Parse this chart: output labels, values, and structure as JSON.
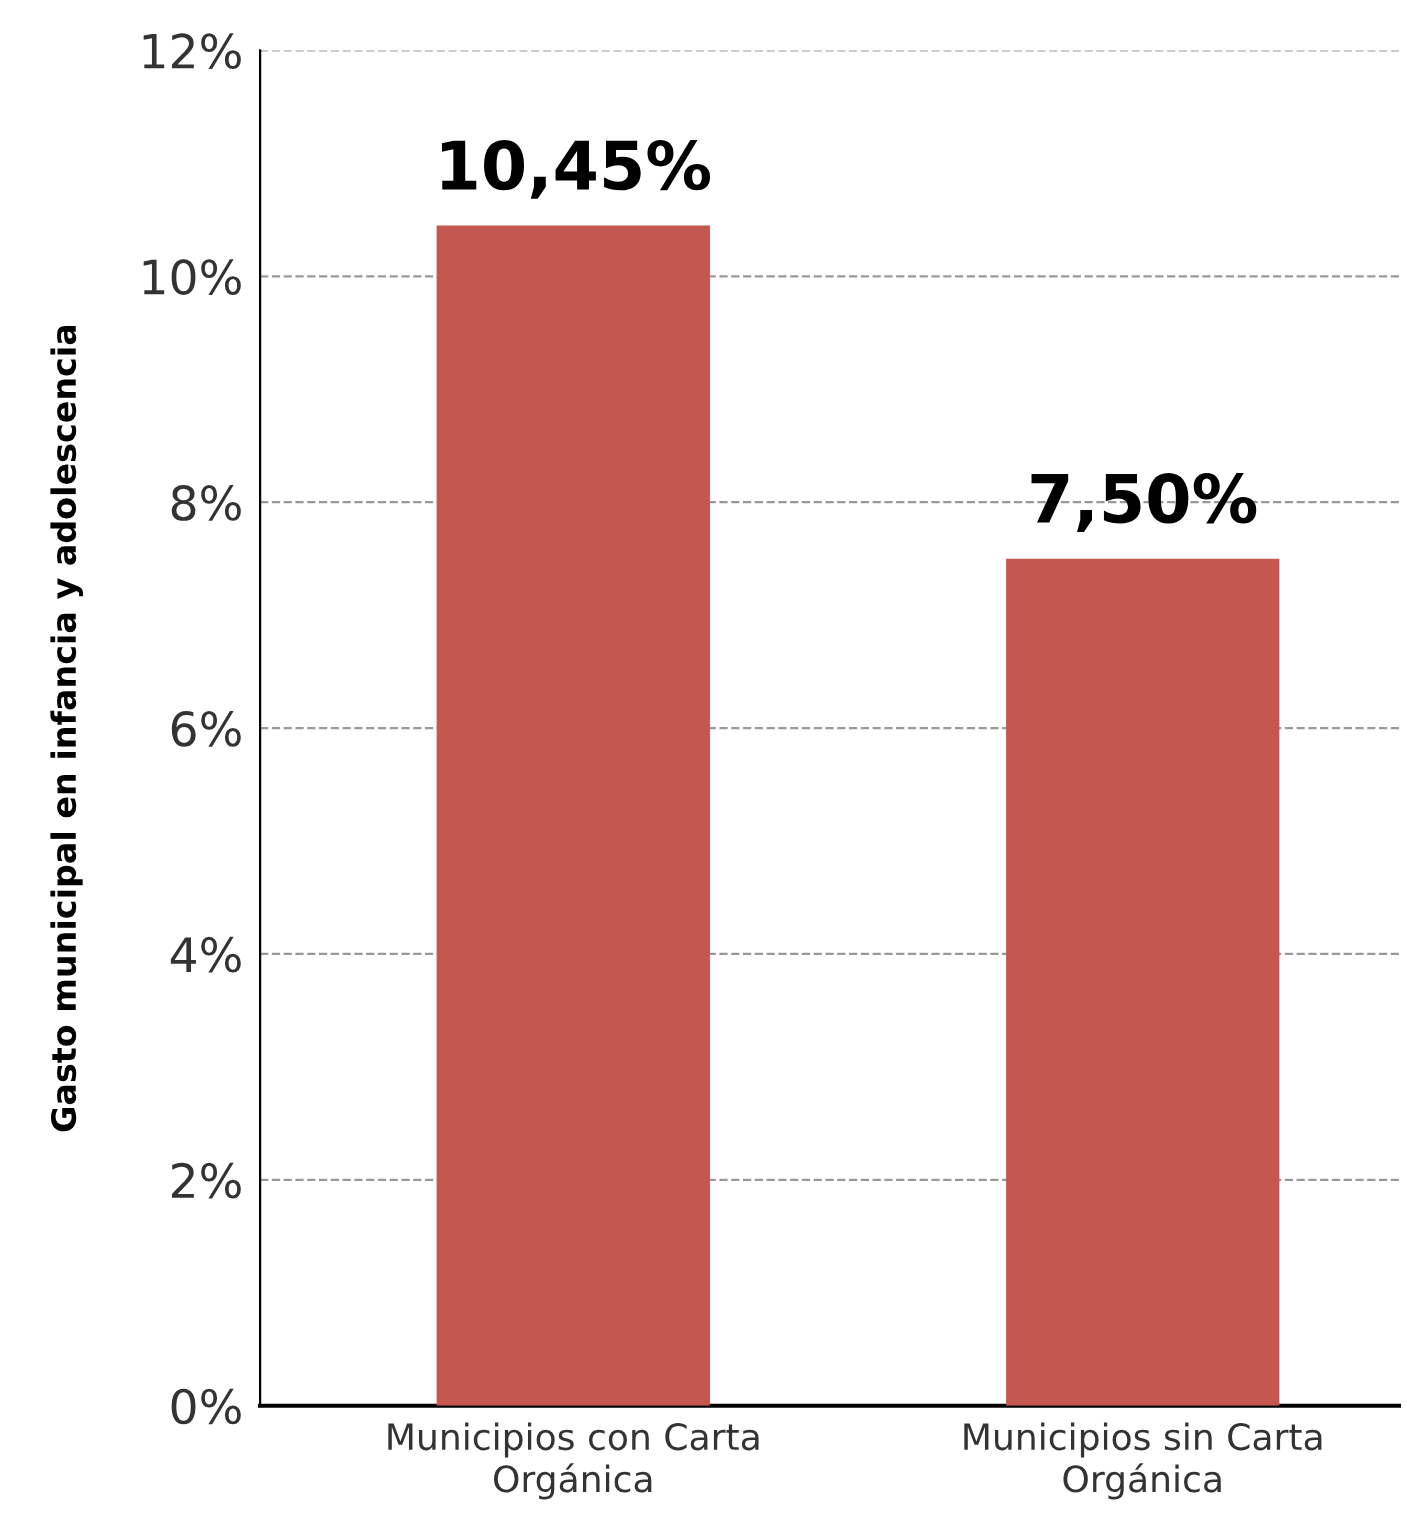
{
  "chart_data": {
    "type": "bar",
    "ylabel": "Gasto municipal en infancia y adolescencia",
    "categories": [
      "Municipios con Carta Orgánica",
      "Municipios sin Carta Orgánica"
    ],
    "values": [
      10.45,
      7.5
    ],
    "color": "#c45850",
    "value_labels": [
      "10,45%",
      "7,50%"
    ],
    "ylim": [
      0,
      12
    ],
    "yticks": [
      {
        "value": 0,
        "label": "0%"
      },
      {
        "value": 2,
        "label": "2%"
      },
      {
        "value": 4,
        "label": "4%"
      },
      {
        "value": 6,
        "label": "6%"
      },
      {
        "value": 8,
        "label": "8%"
      },
      {
        "value": 10,
        "label": "10%"
      },
      {
        "value": 12,
        "label": "12%"
      }
    ],
    "grid": "y",
    "legend": false
  }
}
